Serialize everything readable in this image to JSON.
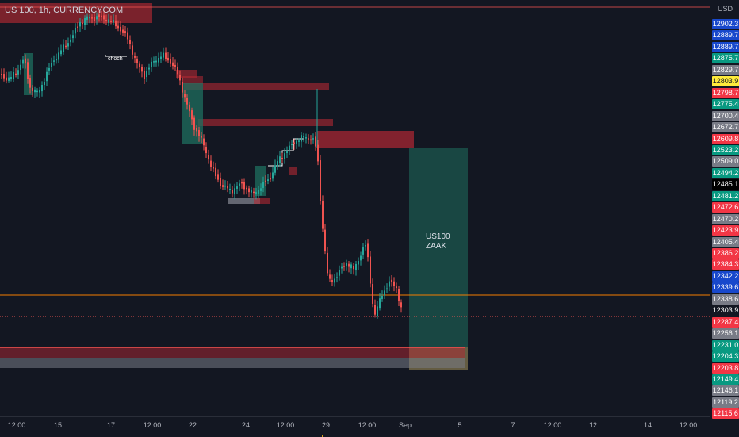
{
  "header": {
    "symbol_title": "US 100, 1h, CURRENCYCOM"
  },
  "price_axis": {
    "currency": "USD",
    "labels": [
      {
        "value": "12902.3",
        "bg": "#1848cc",
        "fg": "#ffffff"
      },
      {
        "value": "12889.7",
        "bg": "#1848cc",
        "fg": "#ffffff"
      },
      {
        "value": "12889.7",
        "bg": "#1848cc",
        "fg": "#ffffff"
      },
      {
        "value": "12875.7",
        "bg": "#089981",
        "fg": "#ffffff"
      },
      {
        "value": "12829.7",
        "bg": "#787b86",
        "fg": "#ffffff"
      },
      {
        "value": "12803.9",
        "bg": "#ffeb3b",
        "fg": "#131722"
      },
      {
        "value": "12798.7",
        "bg": "#f23645",
        "fg": "#ffffff"
      },
      {
        "value": "12775.4",
        "bg": "#089981",
        "fg": "#ffffff"
      },
      {
        "value": "12700.4",
        "bg": "#787b86",
        "fg": "#ffffff"
      },
      {
        "value": "12672.7",
        "bg": "#787b86",
        "fg": "#ffffff"
      },
      {
        "value": "12609.8",
        "bg": "#f23645",
        "fg": "#ffffff"
      },
      {
        "value": "12523.2",
        "bg": "#089981",
        "fg": "#ffffff"
      },
      {
        "value": "12509.0",
        "bg": "#787b86",
        "fg": "#ffffff"
      },
      {
        "value": "12494.2",
        "bg": "#089981",
        "fg": "#ffffff"
      },
      {
        "value": "12485.1",
        "bg": "#000000",
        "fg": "#ffffff"
      },
      {
        "value": "12481.2",
        "bg": "#089981",
        "fg": "#ffffff"
      },
      {
        "value": "12472.6",
        "bg": "#f23645",
        "fg": "#ffffff"
      },
      {
        "value": "12470.2",
        "bg": "#787b86",
        "fg": "#ffffff"
      },
      {
        "value": "12423.9",
        "bg": "#f23645",
        "fg": "#ffffff"
      },
      {
        "value": "12405.4",
        "bg": "#787b86",
        "fg": "#ffffff"
      },
      {
        "value": "12386.2",
        "bg": "#f23645",
        "fg": "#ffffff"
      },
      {
        "value": "12384.3",
        "bg": "#f23645",
        "fg": "#ffffff"
      },
      {
        "value": "12342.2",
        "bg": "#1848cc",
        "fg": "#ffffff"
      },
      {
        "value": "12339.6",
        "bg": "#1848cc",
        "fg": "#ffffff"
      },
      {
        "value": "12338.6",
        "bg": "#787b86",
        "fg": "#ffffff"
      },
      {
        "value": "12303.9",
        "bg": "#131722",
        "fg": "#ffffff"
      },
      {
        "value": "12287.4",
        "bg": "#f23645",
        "fg": "#ffffff"
      },
      {
        "value": "12256.1",
        "bg": "#787b86",
        "fg": "#ffffff"
      },
      {
        "value": "12231.0",
        "bg": "#089981",
        "fg": "#ffffff"
      },
      {
        "value": "12204.3",
        "bg": "#089981",
        "fg": "#ffffff"
      },
      {
        "value": "12203.8",
        "bg": "#f23645",
        "fg": "#ffffff"
      },
      {
        "value": "12149.4",
        "bg": "#089981",
        "fg": "#ffffff"
      },
      {
        "value": "12146.1",
        "bg": "#787b86",
        "fg": "#ffffff"
      },
      {
        "value": "12119.2",
        "bg": "#787b86",
        "fg": "#ffffff"
      },
      {
        "value": "12115.6",
        "bg": "#f23645",
        "fg": "#ffffff"
      }
    ]
  },
  "time_axis": {
    "labels": [
      "12:00",
      "15",
      "17",
      "12:00",
      "22",
      "24",
      "12:00",
      "29",
      "12:00",
      "Sep",
      "5",
      "7",
      "12:00",
      "12",
      "14",
      "12:00"
    ]
  },
  "annotations": {
    "choch": "choch",
    "position_label_line1": "US100",
    "position_label_line2": "ZAAK"
  },
  "colors": {
    "background": "#131722",
    "bull": "#26a69a",
    "bear": "#ef5350",
    "supply_zone": "#b22833",
    "demand_zone": "#1f6f5f",
    "current_price_line": "#f57c00",
    "target_zone": "#787b86"
  }
}
